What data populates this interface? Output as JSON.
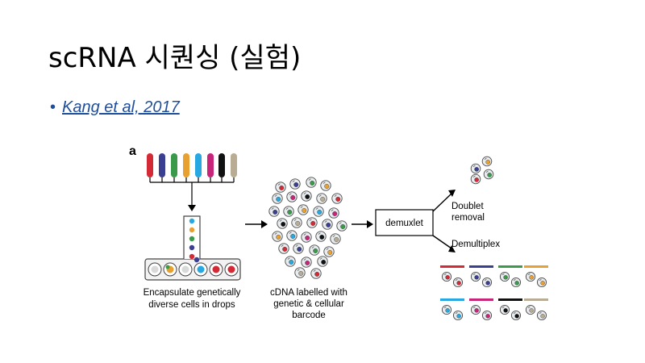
{
  "slide": {
    "title": "scRNA 시퀀싱 (실험)",
    "bullet": {
      "marker": "•",
      "link_text": "Kang et al, 2017"
    }
  },
  "figure": {
    "panel_label": "a",
    "caption_left_line1": "Encapsulate genetically",
    "caption_left_line2": "diverse cells in drops",
    "caption_mid_line1": "cDNA labelled with",
    "caption_mid_line2": "genetic & cellular",
    "caption_mid_line3": "barcode",
    "box_label": "demuxlet",
    "branch_top_line1": "Doublet",
    "branch_top_line2": "removal",
    "branch_bottom": "Demultiplex",
    "sample_colors": [
      "#d42a35",
      "#3a3f91",
      "#3a9a4a",
      "#e8a030",
      "#27a8e0",
      "#c8257a",
      "#111111",
      "#b8ad94"
    ]
  }
}
